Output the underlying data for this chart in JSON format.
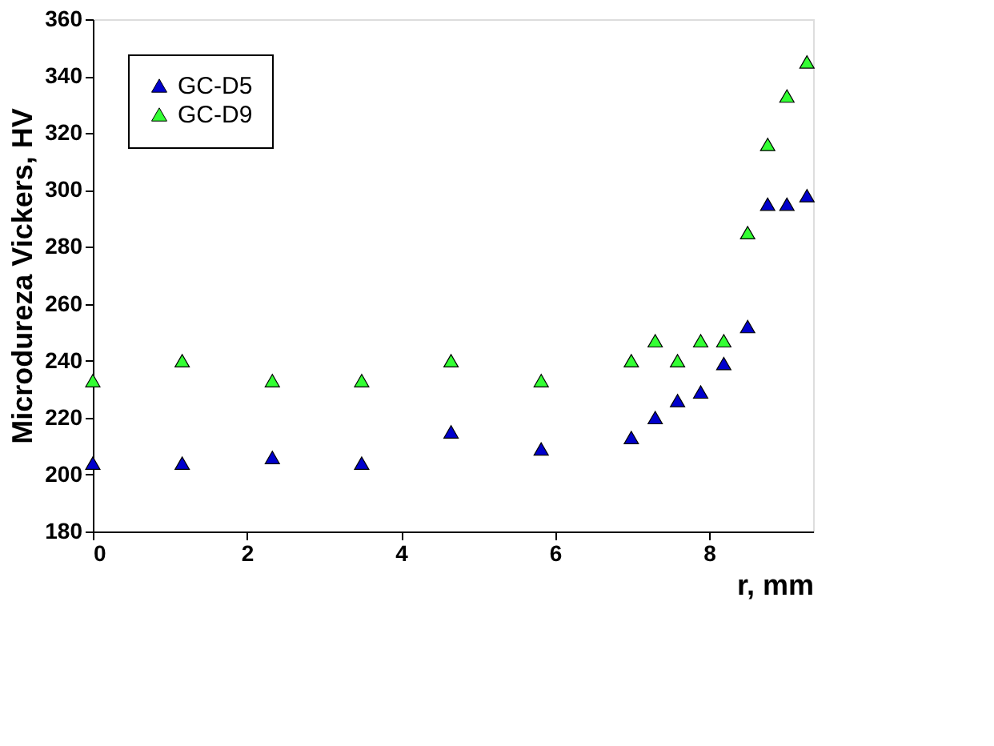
{
  "chart_data": {
    "type": "scatter",
    "xlabel": "r, mm",
    "ylabel": "Microdureza Vickers, HV",
    "xlim": [
      0,
      9.35
    ],
    "xticks": [
      0,
      2,
      4,
      6,
      8
    ],
    "ylim": [
      180,
      360
    ],
    "yticks": [
      180,
      200,
      220,
      240,
      260,
      280,
      300,
      320,
      340,
      360
    ],
    "marker": "triangle",
    "legend": "top left",
    "grid": false,
    "series": [
      {
        "name": "GC-D5",
        "color": "#0000cc",
        "x": [
          0,
          1.16,
          2.33,
          3.49,
          4.65,
          5.82,
          6.99,
          7.3,
          7.59,
          7.89,
          8.19,
          8.5,
          8.76,
          9.01,
          9.27
        ],
        "values": [
          204,
          204,
          206,
          204,
          215,
          209,
          213,
          220,
          226,
          229,
          239,
          252,
          295,
          295,
          298
        ]
      },
      {
        "name": "GC-D9",
        "color": "#33ff33",
        "x": [
          0,
          1.16,
          2.33,
          3.49,
          4.65,
          5.82,
          6.99,
          7.3,
          7.59,
          7.89,
          8.19,
          8.5,
          8.76,
          9.01,
          9.27
        ],
        "values": [
          233,
          240,
          233,
          233,
          240,
          233,
          240,
          247,
          240,
          247,
          247,
          285,
          316,
          333,
          345
        ]
      }
    ]
  }
}
